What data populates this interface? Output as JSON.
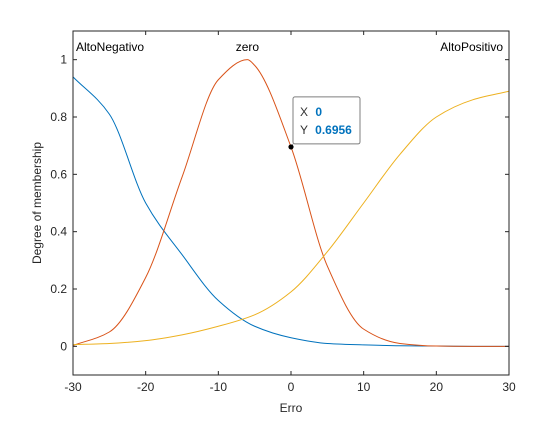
{
  "chart_data": {
    "type": "line",
    "title": "",
    "xlabel": "Erro",
    "ylabel": "Degree of membership",
    "xlim": [
      -30,
      30
    ],
    "ylim": [
      -0.1,
      1.1
    ],
    "x_ticks": [
      -30,
      -20,
      -10,
      0,
      10,
      20,
      30
    ],
    "y_ticks": [
      0,
      0.2,
      0.4,
      0.6,
      0.8,
      1
    ],
    "x_tick_labels": [
      "-30",
      "-20",
      "-10",
      "0",
      "10",
      "20",
      "30"
    ],
    "y_tick_labels": [
      "0",
      "0.2",
      "0.4",
      "0.6",
      "0.8",
      "1"
    ],
    "grid": false,
    "series": [
      {
        "name": "AltoNegativo",
        "color": "#0072BD",
        "x": [
          -30,
          -25,
          -20,
          -15,
          -10,
          -5,
          0,
          5,
          10,
          15,
          20,
          25,
          30
        ],
        "y": [
          0.94,
          0.81,
          0.5,
          0.32,
          0.16,
          0.07,
          0.03,
          0.01,
          0.005,
          0.002,
          0.001,
          0.0,
          0.0
        ]
      },
      {
        "name": "zero",
        "color": "#D95319",
        "x": [
          -30,
          -25,
          -20,
          -15,
          -10,
          -6,
          -5,
          0,
          5,
          10,
          15,
          20,
          25,
          30
        ],
        "y": [
          0.003,
          0.05,
          0.24,
          0.59,
          0.93,
          1.0,
          0.98,
          0.6956,
          0.28,
          0.06,
          0.01,
          0.001,
          0.0,
          0.0
        ]
      },
      {
        "name": "AltoPositivo",
        "color": "#EDB120",
        "x": [
          -30,
          -25,
          -20,
          -15,
          -10,
          -5,
          0,
          5,
          10,
          15,
          20,
          25,
          30
        ],
        "y": [
          0.006,
          0.01,
          0.02,
          0.04,
          0.07,
          0.11,
          0.19,
          0.33,
          0.5,
          0.67,
          0.8,
          0.86,
          0.89
        ]
      }
    ],
    "mf_labels": [
      {
        "text": "AltoNegativo",
        "x": -30
      },
      {
        "text": "zero",
        "x": -6
      },
      {
        "text": "AltoPositivo",
        "x": 30
      }
    ],
    "datatip": {
      "x": 0,
      "y": 0.6956,
      "x_prefix": "X",
      "y_prefix": "Y",
      "x_value": "0",
      "y_value": "0.6956"
    }
  }
}
